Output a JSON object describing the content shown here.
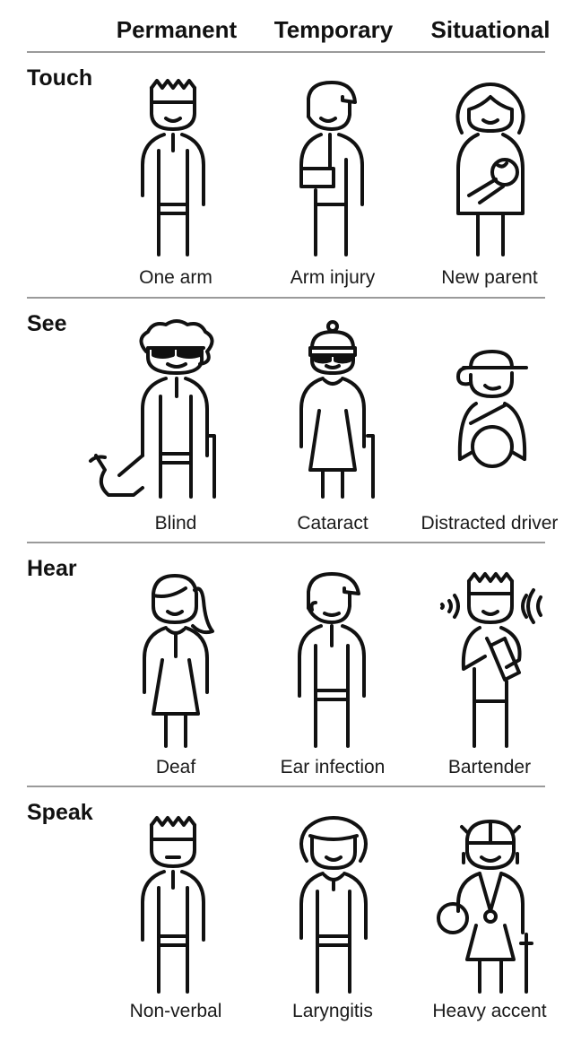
{
  "columns": [
    "Permanent",
    "Temporary",
    "Situational"
  ],
  "rows": [
    {
      "label": "Touch",
      "captions": [
        "One arm",
        "Arm injury",
        "New parent"
      ],
      "icons": [
        "one-arm-figure-icon",
        "arm-injury-figure-icon",
        "new-parent-figure-icon"
      ]
    },
    {
      "label": "See",
      "captions": [
        "Blind",
        "Cataract",
        "Distracted driver"
      ],
      "icons": [
        "blind-figure-icon",
        "cataract-figure-icon",
        "distracted-driver-figure-icon"
      ]
    },
    {
      "label": "Hear",
      "captions": [
        "Deaf",
        "Ear infection",
        "Bartender"
      ],
      "icons": [
        "deaf-figure-icon",
        "ear-infection-figure-icon",
        "bartender-figure-icon"
      ]
    },
    {
      "label": "Speak",
      "captions": [
        "Non-verbal",
        "Laryngitis",
        "Heavy accent"
      ],
      "icons": [
        "non-verbal-figure-icon",
        "laryngitis-figure-icon",
        "heavy-accent-figure-icon"
      ]
    }
  ],
  "colors": {
    "ink": "#111111",
    "rule": "#9a9a9a",
    "background": "#ffffff"
  }
}
